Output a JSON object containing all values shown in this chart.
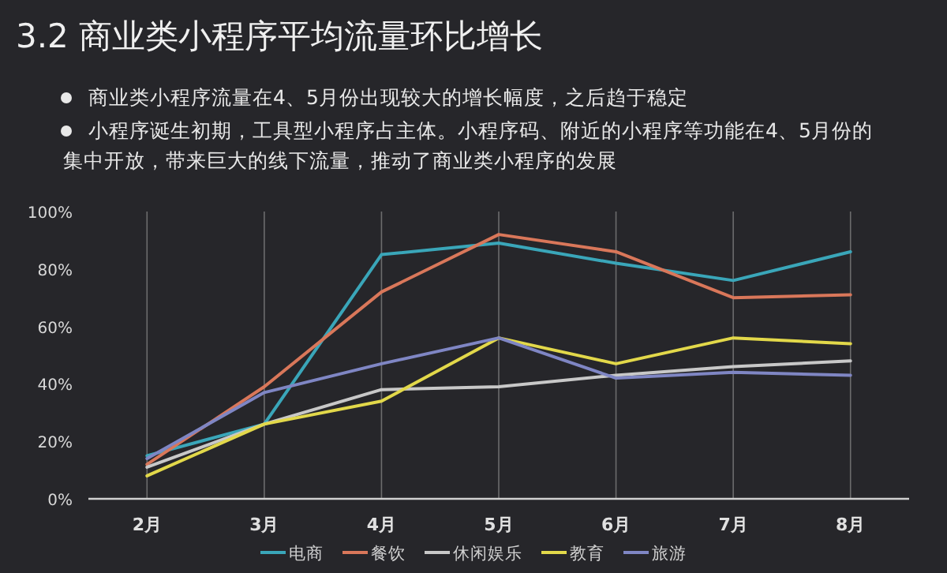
{
  "chart_data": {
    "type": "line",
    "title": "3.2 商业类小程序平均流量环比增长",
    "annotations": [
      "商业类小程序流量在4、5月份出现较大的增长幅度，之后趋于稳定",
      "小程序诞生初期，工具型小程序占主体。小程序码、附近的小程序等功能在4、5月份的集中开放，带来巨大的线下流量，推动了商业类小程序的发展"
    ],
    "categories": [
      "2月",
      "3月",
      "4月",
      "5月",
      "6月",
      "7月",
      "8月"
    ],
    "series": [
      {
        "name": "电商",
        "color": "#3aa6b9",
        "values": [
          15,
          26,
          85,
          89,
          82,
          76,
          86
        ]
      },
      {
        "name": "餐饮",
        "color": "#d9775a",
        "values": [
          12,
          39,
          72,
          92,
          86,
          70,
          71
        ]
      },
      {
        "name": "休闲娱乐",
        "color": "#c8c8c8",
        "values": [
          11,
          26,
          38,
          39,
          43,
          46,
          48
        ]
      },
      {
        "name": "教育",
        "color": "#e2d84a",
        "values": [
          8,
          26,
          34,
          56,
          47,
          56,
          54
        ]
      },
      {
        "name": "旅游",
        "color": "#7f86c4",
        "values": [
          14,
          37,
          47,
          56,
          42,
          44,
          43
        ]
      }
    ],
    "ylim": [
      0,
      100
    ],
    "yticks": [
      {
        "value": 0,
        "label": "0%"
      },
      {
        "value": 20,
        "label": "20%"
      },
      {
        "value": 40,
        "label": "40%"
      },
      {
        "value": 60,
        "label": "60%"
      },
      {
        "value": 80,
        "label": "80%"
      },
      {
        "value": 100,
        "label": "100%"
      }
    ],
    "grid": "x",
    "legend": "bottom",
    "marker": "none",
    "line_style": "solid"
  }
}
